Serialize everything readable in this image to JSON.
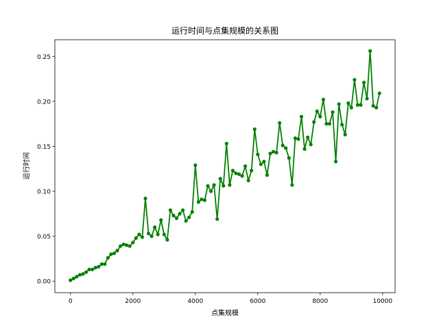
{
  "chart_data": {
    "type": "line",
    "title": "运行时间与点集规模的关系图",
    "xlabel": "点集规模",
    "ylabel": "运行时间",
    "xlim": [
      -500,
      10400
    ],
    "ylim": [
      -0.0128,
      0.2685
    ],
    "xticks": [
      0,
      2000,
      4000,
      6000,
      8000,
      10000
    ],
    "xtick_labels": [
      "0",
      "2000",
      "4000",
      "6000",
      "8000",
      "10000"
    ],
    "yticks": [
      0.0,
      0.05,
      0.1,
      0.15,
      0.2,
      0.25
    ],
    "ytick_labels": [
      "0.00",
      "0.05",
      "0.10",
      "0.15",
      "0.20",
      "0.25"
    ],
    "grid": false,
    "legend": "none",
    "series": [
      {
        "color": "#008000",
        "marker": "circle",
        "x": [
          0,
          100,
          200,
          300,
          400,
          500,
          600,
          700,
          800,
          900,
          1000,
          1100,
          1200,
          1300,
          1400,
          1500,
          1600,
          1700,
          1800,
          1900,
          2000,
          2100,
          2200,
          2300,
          2400,
          2500,
          2600,
          2700,
          2800,
          2900,
          3000,
          3100,
          3200,
          3300,
          3400,
          3500,
          3600,
          3700,
          3800,
          3900,
          4000,
          4100,
          4200,
          4300,
          4400,
          4500,
          4600,
          4700,
          4800,
          4900,
          5000,
          5100,
          5200,
          5300,
          5400,
          5500,
          5600,
          5700,
          5800,
          5900,
          6000,
          6100,
          6200,
          6300,
          6400,
          6500,
          6600,
          6700,
          6800,
          6900,
          7000,
          7100,
          7200,
          7300,
          7400,
          7500,
          7600,
          7700,
          7800,
          7900,
          8000,
          8100,
          8200,
          8300,
          8400,
          8500,
          8600,
          8700,
          8800,
          8900,
          9000,
          9100,
          9200,
          9300,
          9400,
          9500,
          9600,
          9700,
          9800,
          9900
        ],
        "y": [
          0.001,
          0.003,
          0.005,
          0.007,
          0.008,
          0.01,
          0.013,
          0.013,
          0.015,
          0.016,
          0.019,
          0.019,
          0.026,
          0.03,
          0.031,
          0.034,
          0.039,
          0.041,
          0.04,
          0.039,
          0.043,
          0.048,
          0.052,
          0.049,
          0.092,
          0.053,
          0.05,
          0.06,
          0.052,
          0.068,
          0.052,
          0.046,
          0.079,
          0.073,
          0.07,
          0.075,
          0.079,
          0.067,
          0.071,
          0.077,
          0.129,
          0.088,
          0.091,
          0.09,
          0.106,
          0.1,
          0.107,
          0.069,
          0.114,
          0.106,
          0.153,
          0.107,
          0.123,
          0.12,
          0.119,
          0.117,
          0.128,
          0.112,
          0.123,
          0.169,
          0.141,
          0.13,
          0.133,
          0.118,
          0.142,
          0.144,
          0.143,
          0.176,
          0.151,
          0.148,
          0.137,
          0.107,
          0.159,
          0.158,
          0.183,
          0.147,
          0.16,
          0.152,
          0.177,
          0.189,
          0.183,
          0.202,
          0.175,
          0.175,
          0.188,
          0.133,
          0.197,
          0.174,
          0.163,
          0.198,
          0.193,
          0.224,
          0.196,
          0.196,
          0.221,
          0.203,
          0.256,
          0.195,
          0.193,
          0.209
        ]
      }
    ]
  }
}
